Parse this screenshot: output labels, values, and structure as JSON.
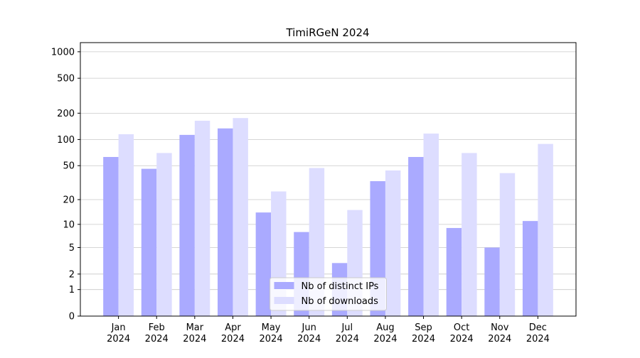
{
  "chart_data": {
    "type": "bar",
    "title": "TimiRGeN 2024",
    "categories": [
      "Jan\n2024",
      "Feb\n2024",
      "Mar\n2024",
      "Apr\n2024",
      "May\n2024",
      "Jun\n2024",
      "Jul\n2024",
      "Aug\n2024",
      "Sep\n2024",
      "Oct\n2024",
      "Nov\n2024",
      "Dec\n2024"
    ],
    "series": [
      {
        "name": "Nb of distinct IPs",
        "color": "#aaaaff",
        "values": [
          63,
          46,
          113,
          134,
          14,
          8,
          3,
          33,
          63,
          9,
          5,
          11
        ]
      },
      {
        "name": "Nb of downloads",
        "color": "#ddddff",
        "values": [
          115,
          70,
          164,
          176,
          25,
          47,
          15,
          44,
          117,
          70,
          41,
          89
        ]
      }
    ],
    "yscale": "log1p",
    "ylim": [
      0,
      1270
    ],
    "yticks": [
      0,
      1,
      2,
      5,
      10,
      20,
      50,
      100,
      200,
      500,
      1000
    ],
    "grid": true,
    "legend": "lower center"
  }
}
